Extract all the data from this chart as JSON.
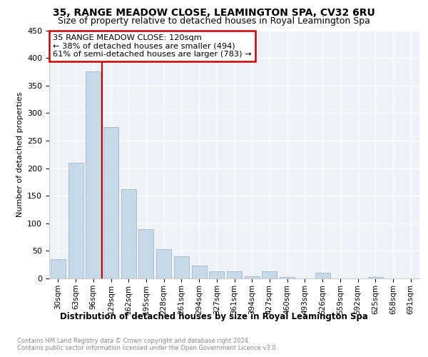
{
  "title": "35, RANGE MEADOW CLOSE, LEAMINGTON SPA, CV32 6RU",
  "subtitle": "Size of property relative to detached houses in Royal Leamington Spa",
  "xlabel": "Distribution of detached houses by size in Royal Leamington Spa",
  "ylabel": "Number of detached properties",
  "footnote1": "Contains HM Land Registry data © Crown copyright and database right 2024.",
  "footnote2": "Contains public sector information licensed under the Open Government Licence v3.0.",
  "annotation_line1": "35 RANGE MEADOW CLOSE: 120sqm",
  "annotation_line2": "← 38% of detached houses are smaller (494)",
  "annotation_line3": "61% of semi-detached houses are larger (783) →",
  "bar_color": "#c5d9e8",
  "bar_edge_color": "#a0b8cc",
  "marker_color": "#cc0000",
  "plot_bg_color": "#eef2f7",
  "categories": [
    "30sqm",
    "63sqm",
    "96sqm",
    "129sqm",
    "162sqm",
    "195sqm",
    "228sqm",
    "261sqm",
    "294sqm",
    "327sqm",
    "361sqm",
    "394sqm",
    "427sqm",
    "460sqm",
    "493sqm",
    "526sqm",
    "559sqm",
    "592sqm",
    "625sqm",
    "658sqm",
    "691sqm"
  ],
  "values": [
    35,
    210,
    375,
    275,
    162,
    90,
    53,
    40,
    23,
    13,
    13,
    4,
    13,
    3,
    0,
    10,
    0,
    0,
    2,
    0,
    0
  ],
  "ylim": [
    0,
    450
  ],
  "yticks": [
    0,
    50,
    100,
    150,
    200,
    250,
    300,
    350,
    400,
    450
  ],
  "marker_bar_index": 2,
  "title_fontsize": 10,
  "subtitle_fontsize": 9
}
